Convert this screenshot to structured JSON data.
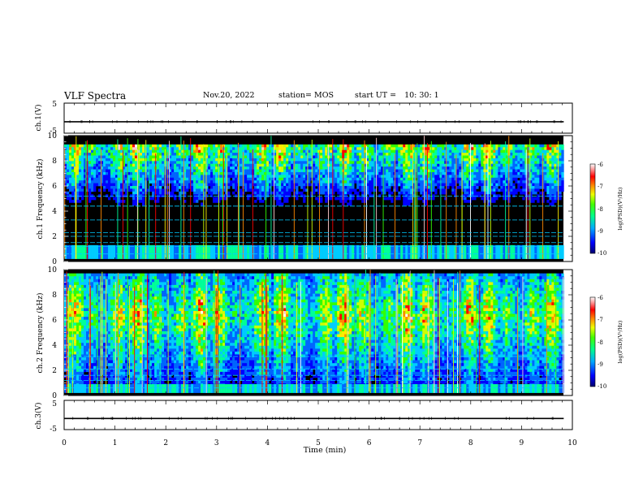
{
  "header": {
    "title": "VLF Spectra",
    "date": "Nov.20, 2022",
    "station": "station= MOS",
    "start_label": "start  UT  =",
    "start_time": "10: 30: 1"
  },
  "colors": {
    "spectrogram_background": "#000000",
    "colormap": [
      "#00008c",
      "#0000ff",
      "#0066ff",
      "#00ccff",
      "#00ff99",
      "#33ff00",
      "#ccff00",
      "#ffee00",
      "#ff8800",
      "#ff0000",
      "#ffcccc",
      "#ffffff"
    ]
  },
  "chart_data": [
    {
      "name": "ch1-waveform",
      "type": "line",
      "ylabel": "ch.1(V)",
      "ylim": [
        -5,
        5
      ],
      "yticks": [
        "5",
        "-5"
      ],
      "xlim": [
        0,
        10
      ],
      "level": -1.2
    },
    {
      "name": "ch1-spectrogram",
      "type": "heatmap",
      "ylabel": "ch.1 Frequency (kHz)",
      "ylim": [
        0,
        10
      ],
      "yticks": [
        "0",
        "2",
        "4",
        "6",
        "8",
        "10"
      ],
      "xlim": [
        0,
        9.83
      ],
      "colorbar": {
        "label": "log(PSD)(V²/Hz)",
        "range": [
          -10,
          -6
        ],
        "ticks": [
          "-6",
          "-7",
          "-8",
          "-9",
          "-10"
        ]
      },
      "band_khz": [
        0.5,
        9.3
      ],
      "low_band_khz": [
        0.2,
        1.3
      ],
      "lines_khz": [
        0.6,
        1.2,
        1.5,
        2.0,
        2.3,
        3.3,
        4.4,
        5.2
      ],
      "intensity": "moderate"
    },
    {
      "name": "ch2-spectrogram",
      "type": "heatmap",
      "ylabel": "ch.2 Frequency (kHz)",
      "ylim": [
        0,
        10
      ],
      "yticks": [
        "0",
        "2",
        "4",
        "6",
        "8",
        "10"
      ],
      "xlim": [
        0,
        9.83
      ],
      "colorbar": {
        "label": "log(PSD)(V²/Hz)",
        "range": [
          -10,
          -6
        ],
        "ticks": [
          "-6",
          "-7",
          "-8",
          "-9",
          "-10"
        ]
      },
      "band_khz": [
        0.5,
        9.7
      ],
      "low_band_khz": [
        0.2,
        0.9
      ],
      "lines_khz": [
        0.6,
        1.2,
        1.6,
        2.1,
        3.1
      ],
      "intensity": "strong"
    },
    {
      "name": "ch3-waveform",
      "type": "line",
      "ylabel": "ch.3(V)",
      "ylim": [
        -5,
        5
      ],
      "yticks": [
        "5",
        "-5"
      ],
      "xlim": [
        0,
        10
      ],
      "level": -1.2
    }
  ],
  "xaxis": {
    "label": "Time  (min)",
    "range": [
      0,
      10
    ],
    "ticks": [
      "0",
      "1",
      "2",
      "3",
      "4",
      "5",
      "6",
      "7",
      "8",
      "9",
      "10"
    ]
  }
}
